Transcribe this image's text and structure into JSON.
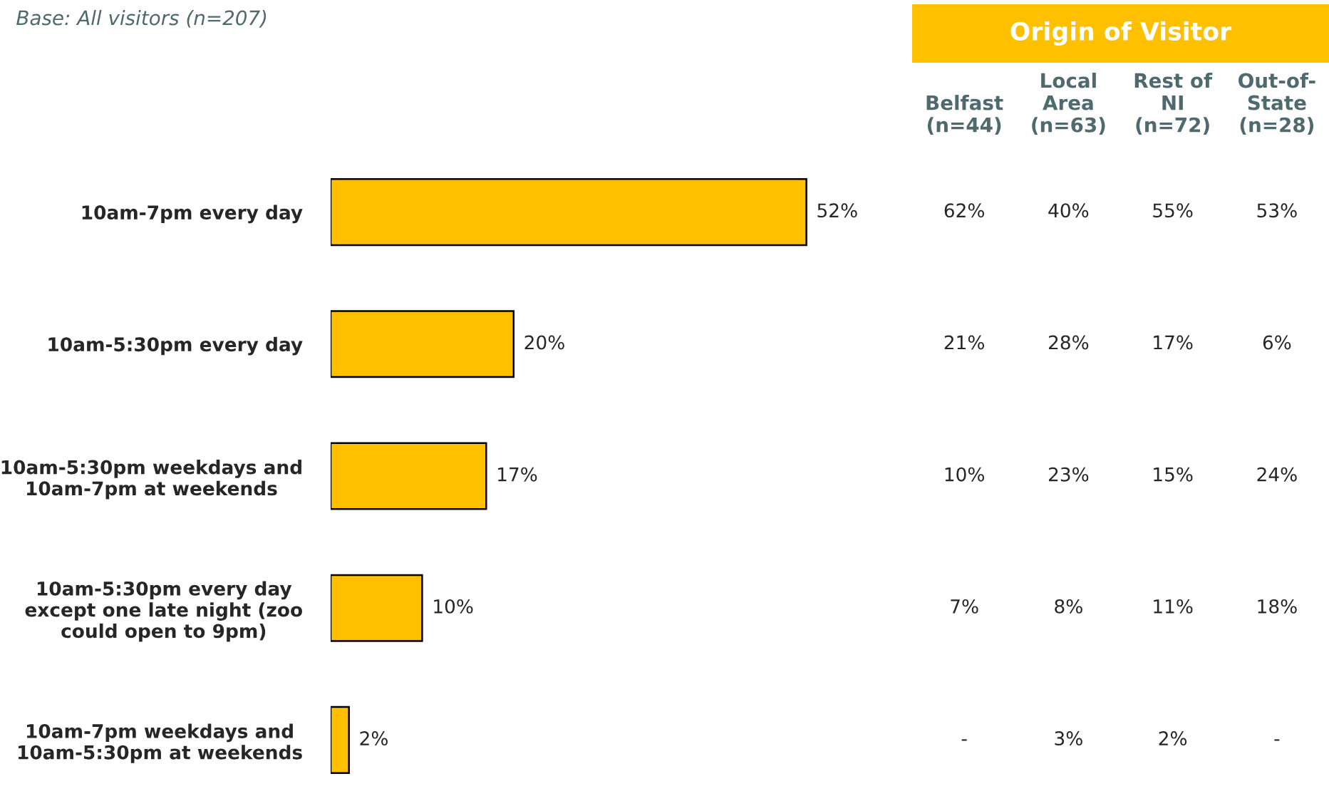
{
  "chart_data": [
    {
      "type": "bar",
      "orientation": "horizontal",
      "categories": [
        "10am-7pm every day",
        "10am-5:30pm every day",
        "10am-5:30pm weekdays and\n10am-7pm at weekends",
        "10am-5:30pm every day\nexcept one late night (zoo\ncould open to 9pm)",
        "10am-7pm weekdays and\n10am-5:30pm at weekends"
      ],
      "values": [
        52,
        20,
        17,
        10,
        2
      ],
      "value_labels": [
        "52%",
        "20%",
        "17%",
        "10%",
        "2%"
      ],
      "colors": [
        "#ffc000",
        "#ffc000",
        "#ffc000",
        "#ffc000",
        "#ffc000"
      ],
      "tick_labels": "y",
      "grid": false,
      "legend": false,
      "annotations": [
        "Base: All visitors (n=207)"
      ]
    },
    {
      "type": "other",
      "title": "Origin of Visitor",
      "categories": [
        "Belfast\n(n=44)",
        "Local\nArea\n(n=63)",
        "Rest of\nNI\n(n=72)",
        "Out-of-\nState\n(n=28)"
      ],
      "cell_labels": [
        [
          "62%",
          "40%",
          "55%",
          "53%"
        ],
        [
          "21%",
          "28%",
          "17%",
          "6%"
        ],
        [
          "10%",
          "23%",
          "15%",
          "24%"
        ],
        [
          "7%",
          "8%",
          "11%",
          "18%"
        ],
        [
          "-",
          "3%",
          "2%",
          "-"
        ]
      ]
    }
  ]
}
